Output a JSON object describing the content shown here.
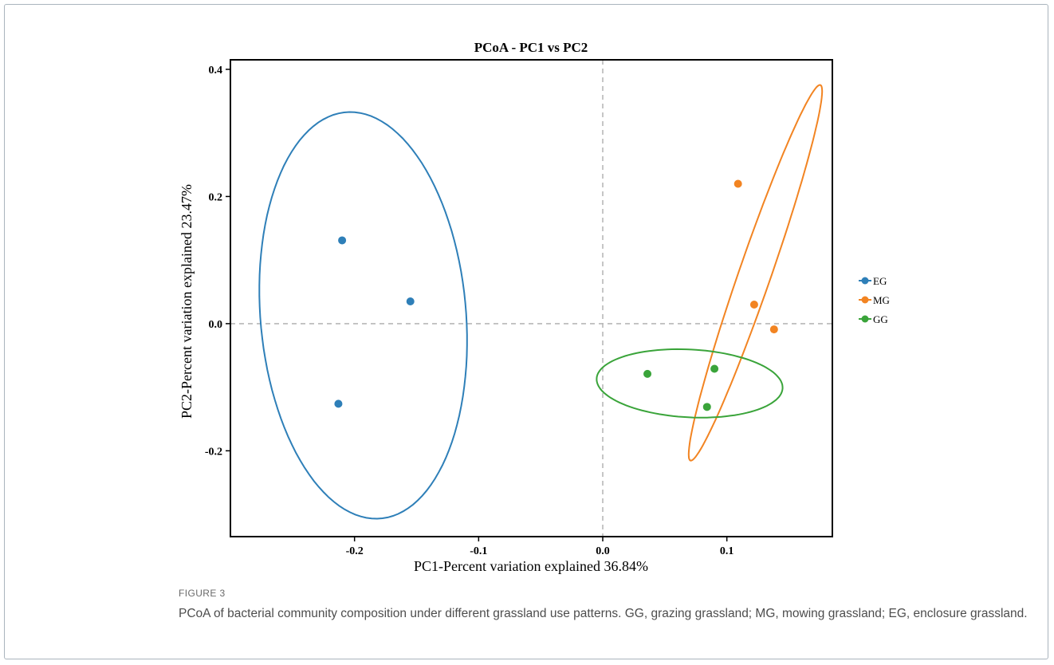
{
  "figure": {
    "label": "FIGURE 3",
    "caption": "PCoA of bacterial community composition under different grassland use patterns. GG, grazing grassland; MG, mowing grassland; EG, enclosure grassland."
  },
  "chart_data": {
    "type": "scatter",
    "title": "PCoA - PC1 vs PC2",
    "xlabel": "PC1-Percent variation explained 36.84%",
    "ylabel": "PC2-Percent variation explained 23.47%",
    "xlim": [
      -0.3,
      0.185
    ],
    "ylim": [
      -0.335,
      0.415
    ],
    "xticks": [
      -0.2,
      -0.1,
      0.0,
      0.1
    ],
    "xtick_labels": [
      "-0.2",
      "-0.1",
      "0.0",
      "0.1"
    ],
    "yticks": [
      -0.2,
      0.0,
      0.2,
      0.4
    ],
    "ytick_labels": [
      "-0.2",
      "0.0",
      "0.2",
      "0.4"
    ],
    "grid": false,
    "reference_lines": {
      "x": 0.0,
      "y": 0.0,
      "style": "dashed"
    },
    "legend_position": "right",
    "series": [
      {
        "name": "EG",
        "color": "#2e7fb8",
        "points": [
          [
            -0.21,
            0.131
          ],
          [
            -0.155,
            0.035
          ],
          [
            -0.213,
            -0.126
          ]
        ],
        "ellipse": {
          "center": [
            -0.193,
            0.013
          ],
          "semi_major": 0.32,
          "semi_minor": 0.083,
          "angle_deg": 92
        }
      },
      {
        "name": "MG",
        "color": "#f28422",
        "points": [
          [
            0.109,
            0.22
          ],
          [
            0.122,
            0.03
          ],
          [
            0.138,
            -0.009
          ]
        ],
        "ellipse": {
          "center": [
            0.123,
            0.08
          ],
          "semi_major": 0.3,
          "semi_minor": 0.0135,
          "angle_deg": 80
        }
      },
      {
        "name": "GG",
        "color": "#3aa43a",
        "points": [
          [
            0.036,
            -0.079
          ],
          [
            0.09,
            -0.071
          ],
          [
            0.084,
            -0.131
          ]
        ],
        "ellipse": {
          "center": [
            0.07,
            -0.094
          ],
          "semi_major": 0.0755,
          "semi_minor": 0.053,
          "angle_deg": -10
        }
      }
    ]
  }
}
